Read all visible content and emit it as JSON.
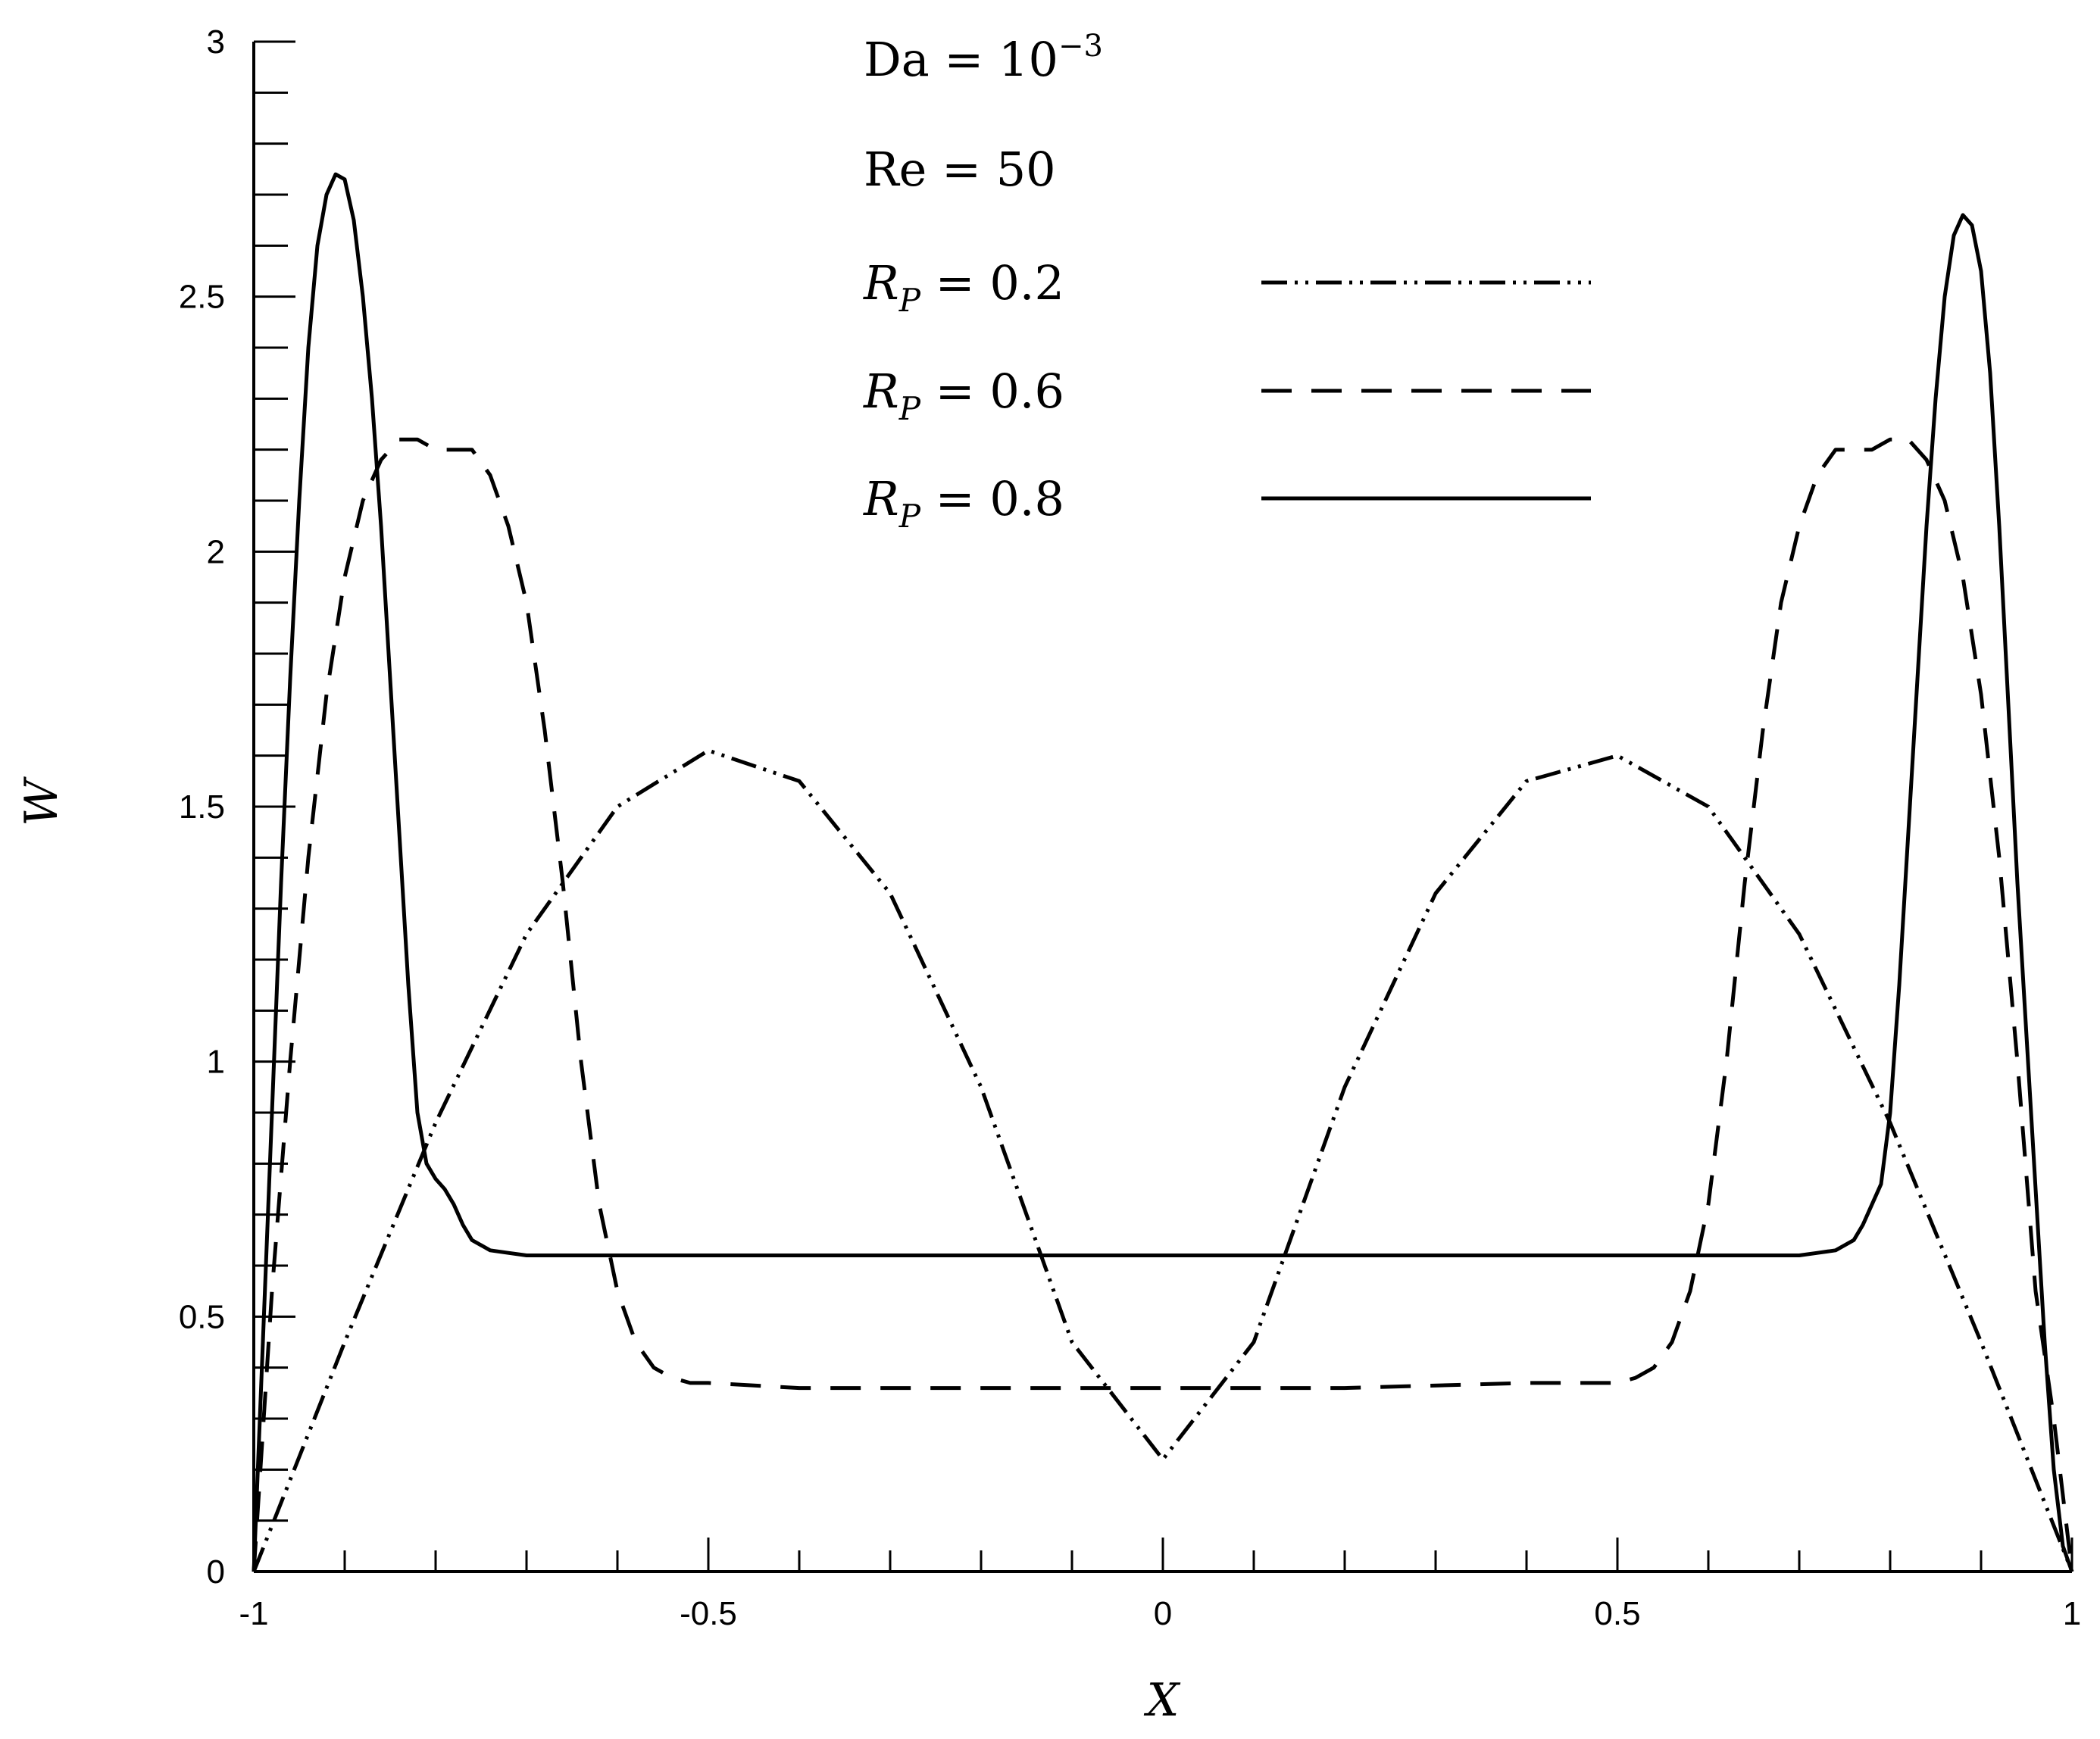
{
  "chart_data": {
    "type": "line",
    "title": "",
    "xlabel": "X",
    "ylabel": "W",
    "xlim": [
      -1,
      1
    ],
    "ylim": [
      0,
      3
    ],
    "x_ticks": [
      -1,
      -0.5,
      0,
      0.5,
      1
    ],
    "x_tick_labels": [
      "-1",
      "-0.5",
      "0",
      "0.5",
      "1"
    ],
    "y_ticks": [
      0,
      0.5,
      1,
      1.5,
      2,
      2.5,
      3
    ],
    "y_tick_labels": [
      "0",
      "0.5",
      "1",
      "1.5",
      "2",
      "2.5",
      "3"
    ],
    "grid": false,
    "legend_placement": "top-right",
    "annotations": [
      {
        "base": "Da",
        "op": " = ",
        "value": "10",
        "exponent": "−3"
      },
      {
        "base": "Re",
        "op": " = ",
        "value": "50"
      }
    ],
    "series": [
      {
        "name": "R_P = 0.2",
        "legend_label": {
          "symbol": "R",
          "subscript": "P",
          "op": " = ",
          "value": "0.2"
        },
        "style": "dash-dot-dot",
        "x": [
          -1,
          -0.9,
          -0.8,
          -0.7,
          -0.6,
          -0.5,
          -0.4,
          -0.3,
          -0.2,
          -0.1,
          0,
          0.1,
          0.2,
          0.3,
          0.4,
          0.5,
          0.6,
          0.7,
          0.8,
          0.9,
          1
        ],
        "y": [
          0,
          0.45,
          0.88,
          1.25,
          1.5,
          1.61,
          1.55,
          1.33,
          0.95,
          0.45,
          0.22,
          0.45,
          0.95,
          1.33,
          1.55,
          1.6,
          1.5,
          1.25,
          0.88,
          0.45,
          0
        ]
      },
      {
        "name": "R_P = 0.6",
        "legend_label": {
          "symbol": "R",
          "subscript": "P",
          "op": " = ",
          "value": "0.6"
        },
        "style": "dashed",
        "x": [
          -1,
          -0.98,
          -0.96,
          -0.94,
          -0.92,
          -0.9,
          -0.88,
          -0.86,
          -0.84,
          -0.82,
          -0.8,
          -0.78,
          -0.76,
          -0.74,
          -0.72,
          -0.7,
          -0.68,
          -0.66,
          -0.64,
          -0.62,
          -0.6,
          -0.58,
          -0.56,
          -0.54,
          -0.52,
          -0.5,
          -0.4,
          -0.2,
          0,
          0.2,
          0.4,
          0.5,
          0.52,
          0.54,
          0.56,
          0.58,
          0.6,
          0.62,
          0.64,
          0.66,
          0.68,
          0.7,
          0.72,
          0.74,
          0.76,
          0.78,
          0.8,
          0.82,
          0.84,
          0.86,
          0.88,
          0.9,
          0.92,
          0.94,
          0.96,
          0.98,
          1
        ],
        "y": [
          0,
          0.55,
          1.0,
          1.4,
          1.72,
          1.95,
          2.1,
          2.18,
          2.22,
          2.22,
          2.2,
          2.2,
          2.2,
          2.15,
          2.05,
          1.9,
          1.65,
          1.35,
          1.0,
          0.72,
          0.55,
          0.45,
          0.4,
          0.38,
          0.37,
          0.37,
          0.36,
          0.36,
          0.36,
          0.36,
          0.37,
          0.37,
          0.38,
          0.4,
          0.45,
          0.55,
          0.72,
          1.0,
          1.35,
          1.65,
          1.9,
          2.05,
          2.15,
          2.2,
          2.2,
          2.2,
          2.22,
          2.22,
          2.18,
          2.1,
          1.95,
          1.72,
          1.4,
          1.0,
          0.55,
          0.3,
          0
        ]
      },
      {
        "name": "R_P = 0.8",
        "legend_label": {
          "symbol": "R",
          "subscript": "P",
          "op": " = ",
          "value": "0.8"
        },
        "style": "solid",
        "x": [
          -1,
          -0.99,
          -0.98,
          -0.97,
          -0.96,
          -0.95,
          -0.94,
          -0.93,
          -0.92,
          -0.91,
          -0.9,
          -0.89,
          -0.88,
          -0.87,
          -0.86,
          -0.85,
          -0.84,
          -0.83,
          -0.82,
          -0.81,
          -0.8,
          -0.79,
          -0.78,
          -0.77,
          -0.76,
          -0.74,
          -0.72,
          -0.7,
          -0.6,
          -0.4,
          -0.2,
          0,
          0.2,
          0.4,
          0.6,
          0.7,
          0.72,
          0.74,
          0.76,
          0.77,
          0.78,
          0.79,
          0.8,
          0.81,
          0.82,
          0.83,
          0.84,
          0.85,
          0.86,
          0.87,
          0.88,
          0.89,
          0.9,
          0.91,
          0.92,
          0.93,
          0.94,
          0.95,
          0.96,
          0.97,
          0.98,
          0.99,
          1
        ],
        "y": [
          0,
          0.45,
          0.9,
          1.35,
          1.75,
          2.1,
          2.4,
          2.6,
          2.7,
          2.74,
          2.73,
          2.65,
          2.5,
          2.3,
          2.05,
          1.75,
          1.45,
          1.15,
          0.9,
          0.8,
          0.77,
          0.75,
          0.72,
          0.68,
          0.65,
          0.63,
          0.625,
          0.62,
          0.62,
          0.62,
          0.62,
          0.62,
          0.62,
          0.62,
          0.62,
          0.62,
          0.625,
          0.63,
          0.65,
          0.68,
          0.72,
          0.76,
          0.9,
          1.15,
          1.45,
          1.75,
          2.05,
          2.3,
          2.5,
          2.62,
          2.66,
          2.64,
          2.55,
          2.35,
          2.05,
          1.7,
          1.35,
          1.05,
          0.75,
          0.45,
          0.2,
          0.05,
          0
        ]
      }
    ]
  }
}
